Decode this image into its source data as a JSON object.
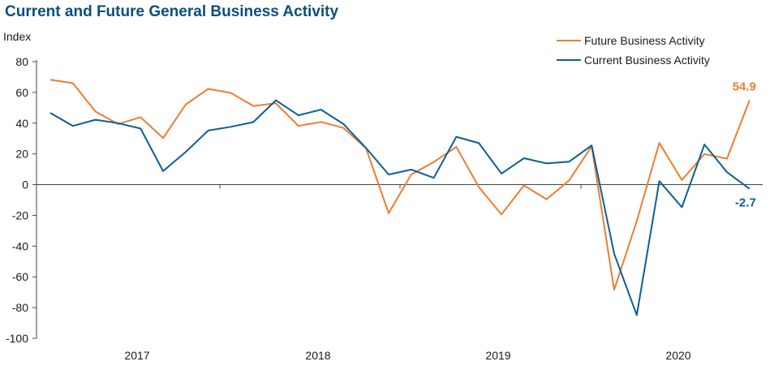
{
  "chart_data": {
    "type": "line",
    "title": "Current and Future General Business Activity",
    "ylabel": "Index",
    "xlabel": "",
    "ylim": [
      -100,
      80
    ],
    "yticks": [
      -100,
      -80,
      -60,
      -40,
      -20,
      0,
      20,
      40,
      60,
      80
    ],
    "year_labels": [
      "2017",
      "2018",
      "2019",
      "2020"
    ],
    "legend_position": "top-right",
    "grid": false,
    "series": [
      {
        "name": "Future Business Activity",
        "color": "#ed7d31",
        "values": [
          68.3,
          66.0,
          47.6,
          39.4,
          43.9,
          30.3,
          52.1,
          62.3,
          59.7,
          51.2,
          52.9,
          38.2,
          40.8,
          36.9,
          23.6,
          -18.6,
          6.6,
          14.7,
          24.5,
          -1.6,
          -19.4,
          -0.5,
          -9.5,
          2.7,
          25.0,
          -68.4,
          -23.7,
          27.1,
          3.0,
          19.9,
          16.9,
          54.9
        ]
      },
      {
        "name": "Current Business Activity",
        "color": "#0b5f95",
        "values": [
          46.7,
          38.2,
          42.2,
          40.0,
          36.5,
          8.8,
          21.2,
          35.2,
          37.6,
          40.7,
          54.9,
          45.1,
          48.8,
          39.4,
          23.8,
          6.6,
          9.8,
          4.4,
          31.1,
          27.0,
          7.2,
          17.2,
          13.8,
          14.9,
          25.5,
          -45.0,
          -84.9,
          2.3,
          -14.7,
          26.1,
          8.1,
          -2.7
        ]
      }
    ],
    "end_labels": [
      {
        "series": 0,
        "text": "54.9"
      },
      {
        "series": 1,
        "text": "-2.7"
      }
    ]
  }
}
